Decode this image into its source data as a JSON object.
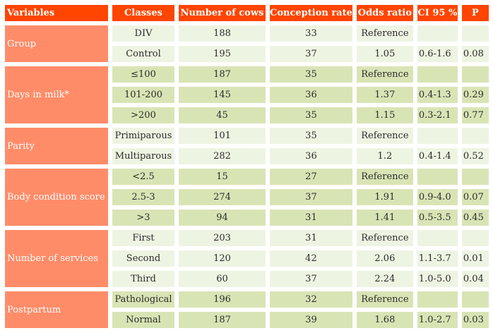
{
  "table": {
    "headers": [
      "Variables",
      "Classes",
      "Number of cows",
      "Conception rate",
      "Odds ratio",
      "CI 95 %",
      "P"
    ],
    "colors": {
      "header_bg": "#ff4500",
      "variable_bg": "#ff8c69",
      "light_row_bg": "#eef4e2",
      "dark_row_bg": "#d9e4b5"
    },
    "groups": [
      {
        "variable": "Group",
        "shade": "light",
        "rows": [
          {
            "class": "DIV",
            "cows": "188",
            "rate": "33",
            "odds": "Reference",
            "ci": "",
            "p": ""
          },
          {
            "class": "Control",
            "cows": "195",
            "rate": "37",
            "odds": "1.05",
            "ci": "0.6-1.6",
            "p": "0.08"
          }
        ]
      },
      {
        "variable": "Days in milk*",
        "shade": "dark",
        "rows": [
          {
            "class": "≤100",
            "cows": "187",
            "rate": "35",
            "odds": "Reference",
            "ci": "",
            "p": ""
          },
          {
            "class": "101-200",
            "cows": "145",
            "rate": "36",
            "odds": "1.37",
            "ci": "0.4-1.3",
            "p": "0.29"
          },
          {
            "class": ">200",
            "cows": "45",
            "rate": "35",
            "odds": "1.15",
            "ci": "0.3-2.1",
            "p": "0.77"
          }
        ]
      },
      {
        "variable": "Parity",
        "shade": "light",
        "rows": [
          {
            "class": "Primiparous",
            "cows": "101",
            "rate": "35",
            "odds": "Reference",
            "ci": "",
            "p": ""
          },
          {
            "class": "Multiparous",
            "cows": "282",
            "rate": "36",
            "odds": "1.2",
            "ci": "0.4-1.4",
            "p": "0.52"
          }
        ]
      },
      {
        "variable": "Body condition score",
        "shade": "dark",
        "rows": [
          {
            "class": "<2.5",
            "cows": "15",
            "rate": "27",
            "odds": "Reference",
            "ci": "",
            "p": ""
          },
          {
            "class": "2.5-3",
            "cows": "274",
            "rate": "37",
            "odds": "1.91",
            "ci": "0.9-4.0",
            "p": "0.07"
          },
          {
            "class": ">3",
            "cows": "94",
            "rate": "31",
            "odds": "1.41",
            "ci": "0.5-3.5",
            "p": "0.45"
          }
        ]
      },
      {
        "variable": "Number of services",
        "shade": "light",
        "rows": [
          {
            "class": "First",
            "cows": "203",
            "rate": "31",
            "odds": "Reference",
            "ci": "",
            "p": ""
          },
          {
            "class": "Second",
            "cows": "120",
            "rate": "42",
            "odds": "2.06",
            "ci": "1.1-3.7",
            "p": "0.01"
          },
          {
            "class": "Third",
            "cows": "60",
            "rate": "37",
            "odds": "2.24",
            "ci": "1.0-5.0",
            "p": "0.04"
          }
        ]
      },
      {
        "variable": "Postpartum",
        "shade": "dark",
        "rows": [
          {
            "class": "Pathological",
            "cows": "196",
            "rate": "32",
            "odds": "Reference",
            "ci": "",
            "p": ""
          },
          {
            "class": "Normal",
            "cows": "187",
            "rate": "39",
            "odds": "1.68",
            "ci": "1.0-2.7",
            "p": "0.03"
          }
        ]
      }
    ]
  }
}
